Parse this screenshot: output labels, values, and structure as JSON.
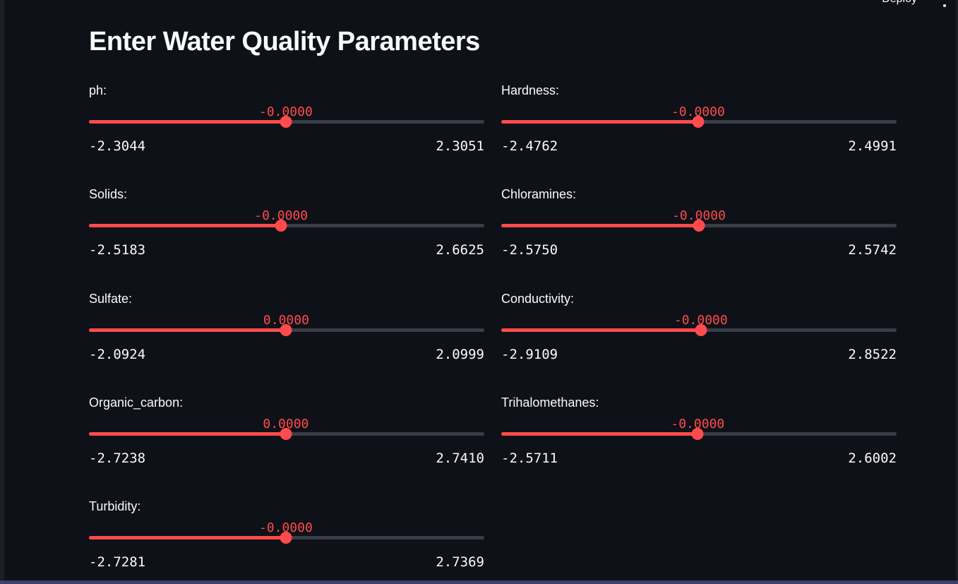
{
  "header": {
    "deploy_label": "Deploy",
    "menu_icon": "vertical-ellipsis-icon"
  },
  "page": {
    "title": "Enter Water Quality Parameters"
  },
  "colors": {
    "accent": "#ff4b4b",
    "background": "#0e1117",
    "track": "#3a3d45",
    "text": "#fafafa"
  },
  "sliders": [
    {
      "label": "ph:",
      "value_text": "-0.0000",
      "min": "-2.3044",
      "max": "2.3051",
      "position": 0.498
    },
    {
      "label": "Hardness:",
      "value_text": "-0.0000",
      "min": "-2.4762",
      "max": "2.4991",
      "position": 0.498
    },
    {
      "label": "Solids:",
      "value_text": "-0.0000",
      "min": "-2.5183",
      "max": "2.6625",
      "position": 0.486
    },
    {
      "label": "Chloramines:",
      "value_text": "-0.0000",
      "min": "-2.5750",
      "max": "2.5742",
      "position": 0.5
    },
    {
      "label": "Sulfate:",
      "value_text": "0.0000",
      "min": "-2.0924",
      "max": "2.0999",
      "position": 0.499
    },
    {
      "label": "Conductivity:",
      "value_text": "-0.0000",
      "min": "-2.9109",
      "max": "2.8522",
      "position": 0.505
    },
    {
      "label": "Organic_carbon:",
      "value_text": "0.0000",
      "min": "-2.7238",
      "max": "2.7410",
      "position": 0.498
    },
    {
      "label": "Trihalomethanes:",
      "value_text": "-0.0000",
      "min": "-2.5711",
      "max": "2.6002",
      "position": 0.497
    },
    {
      "label": "Turbidity:",
      "value_text": "-0.0000",
      "min": "-2.7281",
      "max": "2.7369",
      "position": 0.498
    }
  ]
}
